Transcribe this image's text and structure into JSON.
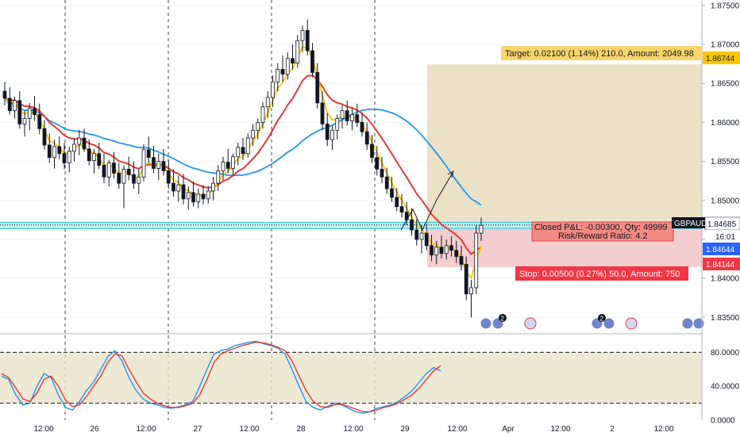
{
  "chart_data": [
    {
      "type": "candlestick",
      "symbol": "GBPAUD",
      "y_ticks": [
        "1.87500",
        "1.87000",
        "1.86500",
        "1.86000",
        "1.85500",
        "1.85000",
        "1.84500",
        "1.84000",
        "1.83500"
      ],
      "ylim": [
        1.833,
        1.8757
      ],
      "x_ticks": [
        "12:00",
        "26",
        "12:00",
        "27",
        "12:00",
        "28",
        "12:00",
        "29",
        "12:00",
        "Apr",
        "12:00",
        "2",
        "12:00"
      ],
      "price_labels": {
        "last": "1.84685",
        "countdown": "16:01",
        "entry": "1.84644",
        "stop": "1.84144",
        "target": "1.86744"
      },
      "position_tool": {
        "target_text": "Target: 0.02100 (1.14%) 210.0, Amount: 2049.98",
        "stop_text": "Stop: 0.00500 (0.27%) 50.0, Amount: 750",
        "pnl_text": "Closed P&L: -0.00300, Qty: 49999",
        "rr_text": "Risk/Reward Ratio: 4.2",
        "entry": 1.84644,
        "stop": 1.84144,
        "target": 1.86744
      },
      "ohlc": [
        [
          1.864,
          1.8652,
          1.8622,
          1.8631
        ],
        [
          1.8631,
          1.8645,
          1.861,
          1.8615
        ],
        [
          1.8615,
          1.8633,
          1.8605,
          1.8628
        ],
        [
          1.8628,
          1.864,
          1.8592,
          1.8598
        ],
        [
          1.8598,
          1.8615,
          1.8582,
          1.8605
        ],
        [
          1.8605,
          1.8625,
          1.859,
          1.8618
        ],
        [
          1.8618,
          1.8634,
          1.8602,
          1.861
        ],
        [
          1.861,
          1.8624,
          1.8585,
          1.8592
        ],
        [
          1.8592,
          1.8603,
          1.8565,
          1.8571
        ],
        [
          1.8571,
          1.8586,
          1.8548,
          1.8555
        ],
        [
          1.8555,
          1.8578,
          1.8541,
          1.8569
        ],
        [
          1.8569,
          1.8582,
          1.8553,
          1.856
        ],
        [
          1.856,
          1.8574,
          1.854,
          1.8548
        ],
        [
          1.8548,
          1.8569,
          1.8536,
          1.8563
        ],
        [
          1.8563,
          1.8579,
          1.855,
          1.8572
        ],
        [
          1.8572,
          1.859,
          1.8558,
          1.858
        ],
        [
          1.858,
          1.8592,
          1.8562,
          1.8566
        ],
        [
          1.8566,
          1.8578,
          1.8545,
          1.8551
        ],
        [
          1.8551,
          1.8566,
          1.8535,
          1.856
        ],
        [
          1.856,
          1.8574,
          1.854,
          1.8545
        ],
        [
          1.8545,
          1.856,
          1.8522,
          1.853
        ],
        [
          1.853,
          1.8552,
          1.8518,
          1.8548
        ],
        [
          1.8548,
          1.8562,
          1.8528,
          1.8535
        ],
        [
          1.8535,
          1.8548,
          1.8515,
          1.8522
        ],
        [
          1.8522,
          1.8545,
          1.849,
          1.854
        ],
        [
          1.854,
          1.8556,
          1.8526,
          1.8533
        ],
        [
          1.8533,
          1.855,
          1.8515,
          1.8522
        ],
        [
          1.8522,
          1.854,
          1.8508,
          1.853
        ],
        [
          1.853,
          1.8572,
          1.8524,
          1.8565
        ],
        [
          1.8565,
          1.8582,
          1.8548,
          1.8555
        ],
        [
          1.8555,
          1.857,
          1.8535,
          1.8541
        ],
        [
          1.8541,
          1.856,
          1.8526,
          1.855
        ],
        [
          1.855,
          1.8566,
          1.8532,
          1.8538
        ],
        [
          1.8538,
          1.8552,
          1.8515,
          1.8522
        ],
        [
          1.8522,
          1.854,
          1.8505,
          1.8512
        ],
        [
          1.8512,
          1.8532,
          1.8498,
          1.852
        ],
        [
          1.852,
          1.8534,
          1.8495,
          1.8502
        ],
        [
          1.8502,
          1.8518,
          1.8488,
          1.851
        ],
        [
          1.851,
          1.8524,
          1.8492,
          1.8498
        ],
        [
          1.8498,
          1.8515,
          1.849,
          1.8508
        ],
        [
          1.8508,
          1.852,
          1.8495,
          1.8502
        ],
        [
          1.8502,
          1.8518,
          1.8496,
          1.8512
        ],
        [
          1.8512,
          1.853,
          1.85,
          1.8522
        ],
        [
          1.8522,
          1.8545,
          1.8512,
          1.8538
        ],
        [
          1.8538,
          1.8556,
          1.8526,
          1.8549
        ],
        [
          1.8549,
          1.8566,
          1.8535,
          1.8541
        ],
        [
          1.8541,
          1.856,
          1.8532,
          1.8556
        ],
        [
          1.8556,
          1.8574,
          1.8545,
          1.8568
        ],
        [
          1.8568,
          1.858,
          1.8552,
          1.856
        ],
        [
          1.856,
          1.8586,
          1.8555,
          1.858
        ],
        [
          1.858,
          1.8598,
          1.857,
          1.859
        ],
        [
          1.859,
          1.8605,
          1.8578,
          1.86
        ],
        [
          1.86,
          1.8626,
          1.8592,
          1.862
        ],
        [
          1.862,
          1.864,
          1.8606,
          1.8632
        ],
        [
          1.8632,
          1.866,
          1.862,
          1.8652
        ],
        [
          1.8652,
          1.8676,
          1.864,
          1.8668
        ],
        [
          1.8668,
          1.8686,
          1.8652,
          1.8662
        ],
        [
          1.8662,
          1.869,
          1.8655,
          1.8682
        ],
        [
          1.8682,
          1.87,
          1.8668,
          1.8676
        ],
        [
          1.8676,
          1.8712,
          1.867,
          1.8705
        ],
        [
          1.8705,
          1.8724,
          1.869,
          1.8718
        ],
        [
          1.8718,
          1.8732,
          1.8686,
          1.8692
        ],
        [
          1.8692,
          1.8702,
          1.8658,
          1.8664
        ],
        [
          1.8664,
          1.8676,
          1.8618,
          1.8625
        ],
        [
          1.8625,
          1.864,
          1.859,
          1.8598
        ],
        [
          1.8598,
          1.8612,
          1.857,
          1.8578
        ],
        [
          1.8578,
          1.8596,
          1.8565,
          1.859
        ],
        [
          1.859,
          1.861,
          1.8578,
          1.8605
        ],
        [
          1.8605,
          1.8622,
          1.8592,
          1.8615
        ],
        [
          1.8615,
          1.8628,
          1.8596,
          1.8602
        ],
        [
          1.8602,
          1.8618,
          1.859,
          1.861
        ],
        [
          1.861,
          1.8624,
          1.8594,
          1.86
        ],
        [
          1.86,
          1.8612,
          1.8582,
          1.8588
        ],
        [
          1.8588,
          1.86,
          1.8565,
          1.8572
        ],
        [
          1.8572,
          1.8584,
          1.8548,
          1.8555
        ],
        [
          1.8555,
          1.857,
          1.8532,
          1.854
        ],
        [
          1.854,
          1.8556,
          1.8522,
          1.853
        ],
        [
          1.853,
          1.8542,
          1.8508,
          1.8515
        ],
        [
          1.8515,
          1.853,
          1.8498,
          1.8504
        ],
        [
          1.8504,
          1.8516,
          1.8486,
          1.8492
        ],
        [
          1.8492,
          1.8508,
          1.8478,
          1.8485
        ],
        [
          1.8485,
          1.8498,
          1.8468,
          1.8475
        ],
        [
          1.8475,
          1.849,
          1.8455,
          1.8462
        ],
        [
          1.8462,
          1.8476,
          1.8442,
          1.845
        ],
        [
          1.845,
          1.8468,
          1.8432,
          1.8458
        ],
        [
          1.8458,
          1.847,
          1.8436,
          1.8442
        ],
        [
          1.8442,
          1.8456,
          1.8422,
          1.843
        ],
        [
          1.843,
          1.8448,
          1.8418,
          1.844
        ],
        [
          1.844,
          1.8455,
          1.8426,
          1.8432
        ],
        [
          1.8432,
          1.845,
          1.8424,
          1.8442
        ],
        [
          1.8442,
          1.8454,
          1.8428,
          1.8436
        ],
        [
          1.8436,
          1.8448,
          1.842,
          1.8428
        ],
        [
          1.8428,
          1.8442,
          1.841,
          1.8418
        ],
        [
          1.8418,
          1.8428,
          1.8372,
          1.838
        ],
        [
          1.838,
          1.8398,
          1.835,
          1.8388
        ],
        [
          1.8388,
          1.8468,
          1.838,
          1.8458
        ],
        [
          1.8458,
          1.8478,
          1.8448,
          1.8468
        ]
      ],
      "ema_fast_color": "#f7c800",
      "ema_slow_color": "#e53935",
      "sma_color": "#2196f3",
      "stoch": {
        "ticks": [
          "80.0000",
          "40.0000",
          "0.0000"
        ],
        "ylim": [
          0,
          100
        ],
        "upper_band": 80,
        "lower_band": 20,
        "k_color": "#2196f3",
        "d_color": "#e53935",
        "k": [
          52,
          48,
          30,
          18,
          20,
          40,
          55,
          50,
          30,
          15,
          12,
          22,
          35,
          45,
          60,
          75,
          82,
          70,
          50,
          35,
          25,
          20,
          18,
          15,
          14,
          16,
          18,
          22,
          40,
          60,
          78,
          82,
          84,
          88,
          90,
          92,
          93,
          90,
          88,
          85,
          78,
          60,
          40,
          22,
          15,
          12,
          16,
          20,
          18,
          14,
          10,
          8,
          10,
          14,
          16,
          18,
          22,
          28,
          35,
          45,
          55,
          62,
          58
        ],
        "d": [
          55,
          50,
          38,
          25,
          22,
          32,
          48,
          52,
          40,
          24,
          16,
          18,
          28,
          40,
          52,
          68,
          78,
          76,
          60,
          45,
          32,
          25,
          20,
          17,
          15,
          15,
          17,
          20,
          30,
          48,
          68,
          78,
          82,
          85,
          88,
          90,
          92,
          91,
          89,
          86,
          82,
          70,
          52,
          35,
          22,
          16,
          15,
          18,
          19,
          16,
          13,
          10,
          10,
          12,
          15,
          17,
          20,
          25,
          30,
          38,
          48,
          58,
          64
        ]
      }
    }
  ],
  "icons": {
    "event_badge_count": "2"
  }
}
